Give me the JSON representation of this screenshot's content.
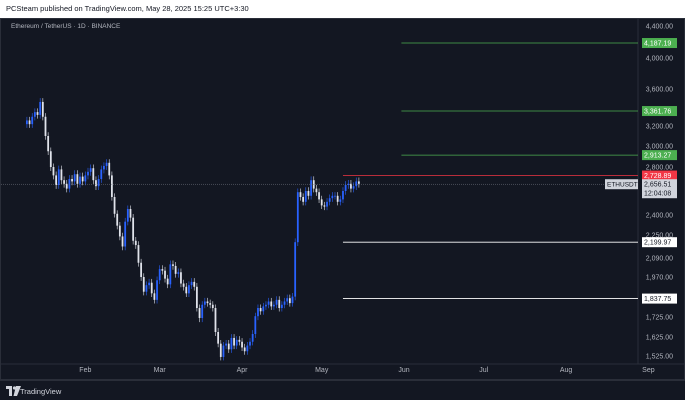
{
  "header": {
    "published_text": "PCSteam published on TradingView.com, May 28, 2025 15:25 UTC+3:30"
  },
  "chart_header": {
    "symbol_text": "Ethereum / TetherUS · 1D · BINANCE"
  },
  "footer": {
    "brand": "TradingView"
  },
  "colors": {
    "up": "#2962ff",
    "down": "#e0e3eb",
    "bg": "#131722",
    "support": "#ffffff",
    "target": "#4caf50",
    "resistance": "#f23645",
    "price_line": "#787b86"
  },
  "icons": {
    "logo": "tradingview-logo-icon"
  },
  "chart_data": {
    "type": "candlestick",
    "symbol": "ETHUSDT",
    "x_labels": [
      "Feb",
      "Mar",
      "Apr",
      "May",
      "Jun",
      "Jul",
      "Aug",
      "Sep"
    ],
    "y_ticks": [
      1525,
      1625,
      1725,
      1970,
      2090,
      2250,
      2400,
      2800,
      3000,
      3200,
      3600,
      4000,
      4400
    ],
    "y_tick_labels": [
      "1,525.00",
      "1,625.00",
      "1,725.00",
      "1,970.00",
      "2,090.00",
      "2,250.00",
      "2,400.00",
      "2,800.00",
      "3,000.00",
      "3,200.00",
      "3,600.00",
      "4,000.00",
      "4,400.00"
    ],
    "current_price": {
      "symbol": "ETHUSDT",
      "value": 2656.51,
      "label": "2,656.51",
      "countdown": "12:04:08"
    },
    "levels": [
      {
        "value": 4187.19,
        "label": "4,187.19",
        "kind": "target",
        "starts_at": "2025-05-31"
      },
      {
        "value": 3361.76,
        "label": "3,361.76",
        "kind": "target",
        "starts_at": "2025-05-31"
      },
      {
        "value": 2913.27,
        "label": "2,913.27",
        "kind": "target",
        "starts_at": "2025-05-31"
      },
      {
        "value": 2728.89,
        "label": "2,728.89",
        "kind": "resistance",
        "starts_at": "2025-05-09"
      },
      {
        "value": 2199.97,
        "label": "2,199.97",
        "kind": "support",
        "starts_at": "2025-05-09"
      },
      {
        "value": 1837.75,
        "label": "1,837.75",
        "kind": "support",
        "starts_at": "2025-05-09"
      }
    ],
    "dates_range": [
      "2025-01-10",
      "2025-05-28"
    ],
    "closes": [
      3260,
      3220,
      3300,
      3350,
      3320,
      3460,
      3300,
      3100,
      2950,
      2800,
      2730,
      2650,
      2780,
      2690,
      2660,
      2620,
      2700,
      2680,
      2740,
      2660,
      2720,
      2680,
      2730,
      2760,
      2790,
      2690,
      2640,
      2700,
      2780,
      2810,
      2840,
      2730,
      2550,
      2410,
      2320,
      2240,
      2170,
      2350,
      2450,
      2380,
      2210,
      2180,
      2060,
      1970,
      1880,
      1920,
      1935,
      1870,
      1830,
      1950,
      2020,
      2010,
      1960,
      1925,
      2050,
      2040,
      1990,
      2000,
      1930,
      1910,
      1870,
      1920,
      1940,
      1910,
      1780,
      1720,
      1800,
      1820,
      1810,
      1800,
      1780,
      1650,
      1590,
      1520,
      1580,
      1590,
      1560,
      1620,
      1580,
      1610,
      1600,
      1570,
      1550,
      1580,
      1600,
      1640,
      1730,
      1780,
      1760,
      1790,
      1800,
      1820,
      1790,
      1800,
      1830,
      1780,
      1800,
      1820,
      1840,
      1810,
      1850,
      2200,
      2590,
      2550,
      2510,
      2600,
      2560,
      2690,
      2620,
      2590,
      2530,
      2480,
      2470,
      2510,
      2540,
      2560,
      2560,
      2510,
      2530,
      2600,
      2650,
      2660,
      2620,
      2640,
      2680,
      2660
    ]
  }
}
